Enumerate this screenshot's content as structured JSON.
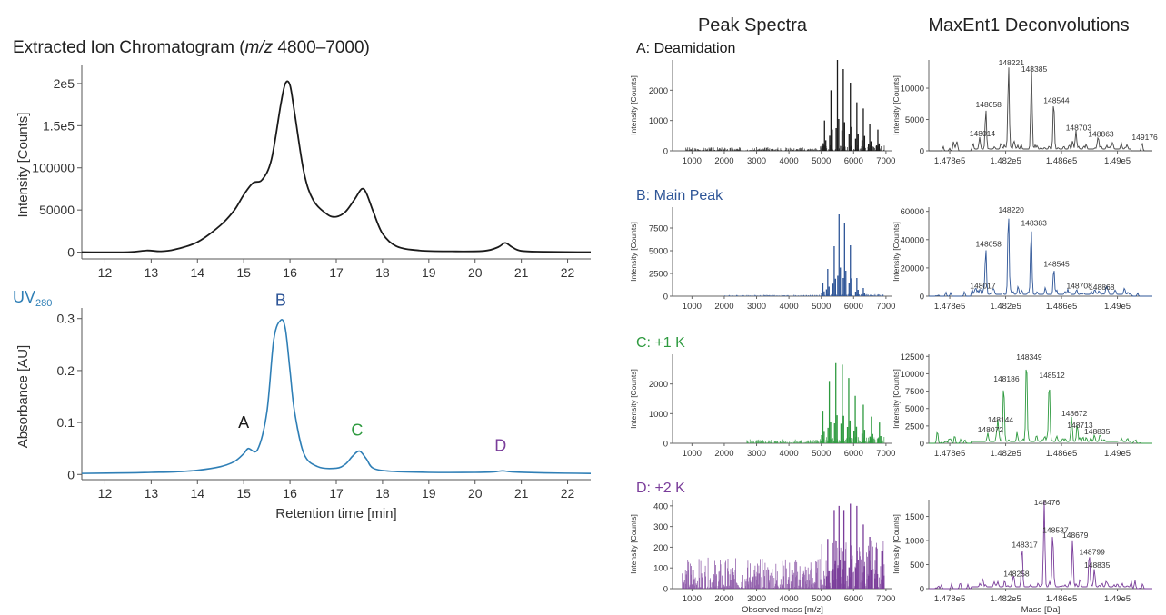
{
  "colors": {
    "tic": "#1a1a1a",
    "uv": "#2f7fb6",
    "A": "#1a1a1a",
    "B": "#2e5597",
    "C": "#2e9a3f",
    "D": "#7a3d9a"
  },
  "main_title_prefix": "Extracted Ion Chromatogram (",
  "main_title_mz": "m/z",
  "main_title_suffix": " 4800–7000)",
  "peak_spectra_heading": "Peak Spectra",
  "deconv_heading": "MaxEnt1 Deconvolutions",
  "chart_data": [
    {
      "id": "eic",
      "type": "line",
      "title": "Extracted Ion Chromatogram (m/z 4800–7000)",
      "ylabel": "Intensity [Counts]",
      "xlabel": "",
      "xlim": [
        11.5,
        22.5
      ],
      "ylim": [
        -8000,
        215000
      ],
      "xticks": [
        "12",
        "13",
        "14",
        "15",
        "16",
        "17",
        "18",
        "19",
        "20",
        "21",
        "22"
      ],
      "yticks": [
        {
          "v": 0,
          "label": "0"
        },
        {
          "v": 50000,
          "label": "50000"
        },
        {
          "v": 100000,
          "label": "100000"
        },
        {
          "v": 150000,
          "label": "1.5e5"
        },
        {
          "v": 200000,
          "label": "2e5"
        }
      ],
      "x": [
        11.5,
        12.5,
        12.9,
        13.2,
        13.5,
        14.0,
        14.5,
        14.8,
        15.0,
        15.2,
        15.4,
        15.6,
        15.8,
        15.9,
        16.0,
        16.1,
        16.3,
        16.5,
        16.8,
        17.0,
        17.2,
        17.4,
        17.55,
        17.65,
        17.8,
        18.0,
        18.3,
        18.8,
        19.5,
        20.2,
        20.5,
        20.65,
        20.8,
        21.0,
        21.5,
        22.5
      ],
      "y": [
        0,
        0,
        2000,
        1000,
        3000,
        12000,
        32000,
        50000,
        68000,
        82000,
        86000,
        110000,
        175000,
        200000,
        198000,
        165000,
        95000,
        62000,
        45000,
        42000,
        48000,
        63000,
        75000,
        70000,
        48000,
        22000,
        7000,
        2000,
        1000,
        1500,
        6000,
        11000,
        6000,
        1500,
        500,
        0
      ]
    },
    {
      "id": "uv",
      "type": "line",
      "title": "UV280",
      "ylabel": "Absorbance [AU]",
      "xlabel": "Retention time [min]",
      "xlim": [
        11.5,
        22.5
      ],
      "ylim": [
        -0.01,
        0.31
      ],
      "xticks": [
        "12",
        "13",
        "14",
        "15",
        "16",
        "17",
        "18",
        "19",
        "20",
        "21",
        "22"
      ],
      "yticks": [
        {
          "v": 0,
          "label": "0"
        },
        {
          "v": 0.1,
          "label": "0.1"
        },
        {
          "v": 0.2,
          "label": "0.2"
        },
        {
          "v": 0.3,
          "label": "0.3"
        }
      ],
      "x": [
        11.5,
        12.5,
        13.0,
        13.5,
        14.0,
        14.5,
        14.8,
        15.0,
        15.1,
        15.3,
        15.5,
        15.65,
        15.8,
        15.9,
        16.0,
        16.1,
        16.3,
        16.6,
        17.0,
        17.2,
        17.35,
        17.5,
        17.65,
        17.8,
        18.2,
        19.0,
        20.0,
        20.4,
        20.6,
        20.8,
        21.5,
        22.5
      ],
      "y": [
        0.002,
        0.003,
        0.004,
        0.005,
        0.008,
        0.015,
        0.025,
        0.04,
        0.05,
        0.048,
        0.12,
        0.26,
        0.297,
        0.28,
        0.2,
        0.12,
        0.04,
        0.015,
        0.012,
        0.02,
        0.035,
        0.045,
        0.03,
        0.012,
        0.006,
        0.004,
        0.004,
        0.005,
        0.007,
        0.005,
        0.003,
        0.002
      ],
      "annotations": [
        {
          "label": "A",
          "x": 15.0,
          "y": 0.09,
          "color": "#1a1a1a"
        },
        {
          "label": "B",
          "x": 15.8,
          "y": 0.325,
          "color": "#2e5597"
        },
        {
          "label": "C",
          "x": 17.45,
          "y": 0.075,
          "color": "#2e9a3f"
        },
        {
          "label": "D",
          "x": 20.55,
          "y": 0.045,
          "color": "#7a3d9a"
        }
      ]
    },
    {
      "id": "specA",
      "type": "bar",
      "title": "A: Deamidation",
      "color": "#1a1a1a",
      "ylabel": "Intensity [Counts]",
      "xlabel": "",
      "xlim": [
        400,
        7200
      ],
      "ylim": [
        0,
        3000
      ],
      "xticks": [
        1000,
        2000,
        3000,
        4000,
        5000,
        6000,
        7000
      ],
      "yticks": [
        0,
        1000,
        2000
      ],
      "peaks": [
        [
          5100,
          1000
        ],
        [
          5300,
          2000
        ],
        [
          5500,
          3000
        ],
        [
          5680,
          2700
        ],
        [
          5900,
          2250
        ],
        [
          6100,
          1600
        ],
        [
          6300,
          1400
        ],
        [
          6500,
          900
        ],
        [
          6750,
          700
        ]
      ],
      "noise": 120,
      "noise_start": 800
    },
    {
      "id": "specB",
      "type": "bar",
      "title": "B: Main Peak",
      "color": "#2e5597",
      "ylabel": "Intensity [Counts]",
      "xlabel": "",
      "xlim": [
        400,
        7200
      ],
      "ylim": [
        0,
        9800
      ],
      "xticks": [
        1000,
        2000,
        3000,
        4000,
        5000,
        6000,
        7000
      ],
      "yticks": [
        0,
        2500,
        5000,
        7500
      ],
      "peaks": [
        [
          5050,
          1500
        ],
        [
          5200,
          3000
        ],
        [
          5400,
          5500
        ],
        [
          5550,
          9000
        ],
        [
          5720,
          8000
        ],
        [
          5900,
          5600
        ],
        [
          6100,
          2000
        ],
        [
          6300,
          900
        ]
      ],
      "noise": 150,
      "noise_start": 2000
    },
    {
      "id": "specC",
      "type": "bar",
      "title": "C: +1 K",
      "color": "#2e9a3f",
      "ylabel": "Intensity [Counts]",
      "xlabel": "",
      "xlim": [
        400,
        7200
      ],
      "ylim": [
        0,
        3000
      ],
      "xticks": [
        1000,
        2000,
        3000,
        4000,
        5000,
        6000,
        7000
      ],
      "yticks": [
        0,
        1000,
        2000
      ],
      "peaks": [
        [
          5050,
          1100
        ],
        [
          5250,
          2100
        ],
        [
          5450,
          2700
        ],
        [
          5650,
          2650
        ],
        [
          5850,
          2200
        ],
        [
          6050,
          1600
        ],
        [
          6300,
          1300
        ],
        [
          6550,
          900
        ],
        [
          6800,
          700
        ]
      ],
      "noise": 140,
      "noise_start": 2700
    },
    {
      "id": "specD",
      "type": "bar",
      "title": "D: +2 K",
      "color": "#7a3d9a",
      "ylabel": "Intensity [Counts]",
      "xlabel": "Observed mass [m/z]",
      "xlim": [
        400,
        7200
      ],
      "ylim": [
        0,
        430
      ],
      "xticks": [
        1000,
        2000,
        3000,
        4000,
        5000,
        6000,
        7000
      ],
      "yticks": [
        0,
        100,
        200,
        300,
        400
      ],
      "peaks": [
        [
          5200,
          240
        ],
        [
          5400,
          380
        ],
        [
          5550,
          400
        ],
        [
          5700,
          380
        ],
        [
          5900,
          410
        ],
        [
          6100,
          400
        ],
        [
          6300,
          310
        ],
        [
          6500,
          250
        ],
        [
          6700,
          200
        ],
        [
          6900,
          180
        ]
      ],
      "noise": 150,
      "noise_start": 700
    },
    {
      "id": "decA",
      "type": "line",
      "color": "#444444",
      "ylabel": "Intensity [Counts]",
      "xlabel": "",
      "xlim": [
        147650,
        149250
      ],
      "ylim": [
        0,
        14500
      ],
      "xticks": [
        {
          "v": 147800,
          "label": "1.478e5"
        },
        {
          "v": 148200,
          "label": "1.482e5"
        },
        {
          "v": 148600,
          "label": "1.486e5"
        },
        {
          "v": 149000,
          "label": "1.49e5"
        }
      ],
      "yticks": [
        {
          "v": 0,
          "label": "0"
        },
        {
          "v": 5000,
          "label": "5000"
        },
        {
          "v": 10000,
          "label": "10000"
        }
      ],
      "peaks": [
        [
          148014,
          1900
        ],
        [
          148058,
          6500
        ],
        [
          148221,
          13500
        ],
        [
          148385,
          12200
        ],
        [
          148544,
          7200
        ],
        [
          148703,
          2800
        ],
        [
          148863,
          1800
        ],
        [
          149176,
          1300
        ]
      ],
      "labels": [
        "148014",
        "148058",
        "148221",
        "148385",
        "148544",
        "148703",
        "148863",
        "149176"
      ]
    },
    {
      "id": "decB",
      "type": "line",
      "color": "#2e5597",
      "ylabel": "Intensity [Counts]",
      "xlabel": "",
      "xlim": [
        147650,
        149250
      ],
      "ylim": [
        0,
        63000
      ],
      "xticks": [
        {
          "v": 147800,
          "label": "1.478e5"
        },
        {
          "v": 148200,
          "label": "1.482e5"
        },
        {
          "v": 148600,
          "label": "1.486e5"
        },
        {
          "v": 149000,
          "label": "1.49e5"
        }
      ],
      "yticks": [
        {
          "v": 0,
          "label": "0"
        },
        {
          "v": 20000,
          "label": "20000"
        },
        {
          "v": 40000,
          "label": "40000"
        },
        {
          "v": 60000,
          "label": "60000"
        }
      ],
      "peaks": [
        [
          148017,
          3500
        ],
        [
          148058,
          33000
        ],
        [
          148220,
          60000
        ],
        [
          148383,
          48000
        ],
        [
          148545,
          19000
        ],
        [
          148708,
          3500
        ],
        [
          148868,
          2500
        ]
      ],
      "labels": [
        "148017",
        "148058",
        "148220",
        "148383",
        "148545",
        "148708",
        "148868"
      ]
    },
    {
      "id": "decC",
      "type": "line",
      "color": "#2e9a3f",
      "ylabel": "Intensity [Counts]",
      "xlabel": "",
      "xlim": [
        147650,
        149250
      ],
      "ylim": [
        0,
        12800
      ],
      "xticks": [
        {
          "v": 147800,
          "label": "1.478e5"
        },
        {
          "v": 148200,
          "label": "1.482e5"
        },
        {
          "v": 148600,
          "label": "1.486e5"
        },
        {
          "v": 149000,
          "label": "1.49e5"
        }
      ],
      "yticks": [
        {
          "v": 0,
          "label": "0"
        },
        {
          "v": 2500,
          "label": "2500"
        },
        {
          "v": 5000,
          "label": "5000"
        },
        {
          "v": 7500,
          "label": "7500"
        },
        {
          "v": 10000,
          "label": "10000"
        },
        {
          "v": 12500,
          "label": "12500"
        }
      ],
      "peaks": [
        [
          148072,
          1200
        ],
        [
          148144,
          2600
        ],
        [
          148186,
          8500
        ],
        [
          148349,
          12500
        ],
        [
          148512,
          9000
        ],
        [
          148672,
          3500
        ],
        [
          148713,
          1800
        ],
        [
          148835,
          900
        ]
      ],
      "labels": [
        "148072",
        "148144",
        "148186",
        "148349",
        "148512",
        "148672",
        "148713",
        "148835"
      ]
    },
    {
      "id": "decD",
      "type": "line",
      "color": "#7a3d9a",
      "ylabel": "Intensity [Counts]",
      "xlabel": "Mass [Da]",
      "xlim": [
        147650,
        149250
      ],
      "ylim": [
        0,
        1850
      ],
      "xticks": [
        {
          "v": 147800,
          "label": "1.478e5"
        },
        {
          "v": 148200,
          "label": "1.482e5"
        },
        {
          "v": 148600,
          "label": "1.486e5"
        },
        {
          "v": 149000,
          "label": "1.49e5"
        }
      ],
      "yticks": [
        {
          "v": 0,
          "label": "0"
        },
        {
          "v": 500,
          "label": "500"
        },
        {
          "v": 1000,
          "label": "1000"
        },
        {
          "v": 1500,
          "label": "1500"
        }
      ],
      "peaks": [
        [
          148258,
          200
        ],
        [
          148317,
          800
        ],
        [
          148476,
          1800
        ],
        [
          148537,
          1100
        ],
        [
          148679,
          1000
        ],
        [
          148799,
          650
        ],
        [
          148835,
          380
        ]
      ],
      "labels": [
        "148258",
        "148317",
        "148476",
        "148537",
        "148679",
        "148799",
        "148835"
      ]
    }
  ]
}
